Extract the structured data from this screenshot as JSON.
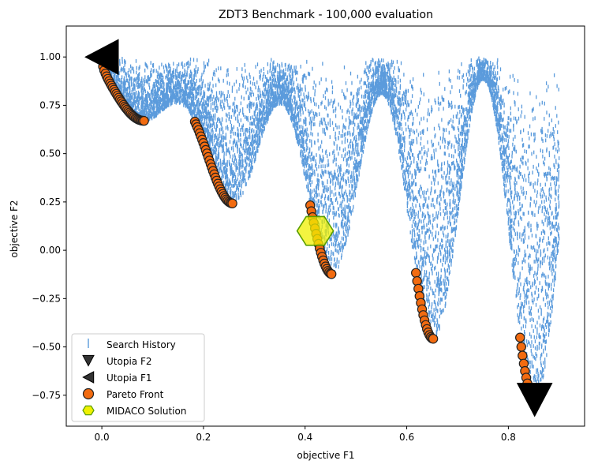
{
  "chart_data": {
    "type": "scatter",
    "title": "ZDT3 Benchmark - 100,000 evaluation",
    "xlabel": "objective F1",
    "ylabel": "objective F2",
    "xlim": [
      -0.07,
      0.95
    ],
    "ylim": [
      -0.91,
      1.16
    ],
    "xticks": [
      0.0,
      0.2,
      0.4,
      0.6,
      0.8
    ],
    "xtick_labels": [
      "0.0",
      "0.2",
      "0.4",
      "0.6",
      "0.8"
    ],
    "yticks": [
      -0.75,
      -0.5,
      -0.25,
      0.0,
      0.25,
      0.5,
      0.75,
      1.0
    ],
    "ytick_labels": [
      "−0.75",
      "−0.50",
      "−0.25",
      "0.00",
      "0.25",
      "0.50",
      "0.75",
      "1.00"
    ],
    "grid": false,
    "legend_position": "bottom-left",
    "colors": {
      "search_history": "#5b9bdc",
      "utopia": "#000000",
      "pareto_face": "#f26b10",
      "pareto_edge": "#222222",
      "midaco_face": "#f0f000",
      "midaco_edge": "#5a9e00"
    },
    "series": [
      {
        "name": "Search History",
        "marker": "vertical-line",
        "region": {
          "x_min": 0.0,
          "x_max": 0.9,
          "y_max": 1.0,
          "lower_envelope": "pareto-front"
        }
      },
      {
        "name": "Utopia F2",
        "marker": "triangle-down",
        "x": [
          0.8518
        ],
        "y": [
          -0.7733
        ]
      },
      {
        "name": "Utopia F1",
        "marker": "triangle-left",
        "x": [
          0.0
        ],
        "y": [
          1.0
        ]
      },
      {
        "name": "Pareto Front",
        "marker": "circle",
        "segments": [
          {
            "x_start": 0.0,
            "x_end": 0.083
          },
          {
            "x_start": 0.183,
            "x_end": 0.257
          },
          {
            "x_start": 0.41,
            "x_end": 0.452
          },
          {
            "x_start": 0.618,
            "x_end": 0.652
          },
          {
            "x_start": 0.823,
            "x_end": 0.852
          }
        ]
      },
      {
        "name": "MIDACO Solution",
        "marker": "hexagon",
        "x": [
          0.42
        ],
        "y": [
          0.1
        ]
      }
    ]
  }
}
